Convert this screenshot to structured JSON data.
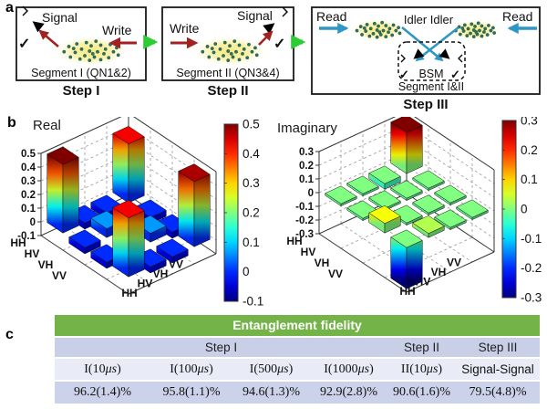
{
  "panels": {
    "a": "a",
    "b": "b",
    "c": "c"
  },
  "diagram": {
    "step1": {
      "signal": "Signal",
      "write": "Write",
      "segment": "Segment I (QN1&2)",
      "step": "Step I"
    },
    "step2": {
      "write": "Write",
      "signal": "Signal",
      "segment": "Segment II (QN3&4)",
      "step": "Step II"
    },
    "step3": {
      "read_left": "Read",
      "read_right": "Read",
      "idler": "Idler Idler",
      "bsm": "BSM",
      "segment": "Segment I&II",
      "step": "Step III"
    },
    "icons": [
      "detector-icon",
      "checkmark-icon",
      "atom-cloud",
      "arrow"
    ],
    "colors": {
      "write_arrow": "#a22121",
      "read_arrow": "#2f97c5",
      "step_arrow": "#2ecc33",
      "check": "#3ab54a",
      "atom_dot": "#2d7261",
      "cloud_glow": "#f8ee8a"
    }
  },
  "chart_data": [
    {
      "type": "bar3d",
      "title": "Real",
      "row_labels": [
        "HH",
        "HV",
        "VH",
        "VV"
      ],
      "col_labels": [
        "HH",
        "HV",
        "VH",
        "VV"
      ],
      "matrix": [
        [
          0.5,
          -0.045,
          -0.045,
          0.43
        ],
        [
          -0.045,
          0.065,
          -0.055,
          -0.045
        ],
        [
          -0.045,
          -0.055,
          0.065,
          -0.045
        ],
        [
          0.43,
          -0.045,
          -0.045,
          0.475
        ]
      ],
      "zlim": [
        -0.1,
        0.5
      ],
      "zticks": [
        "0.5",
        "0.4",
        "0.3",
        "0.2",
        "0.1",
        "0",
        "-0.1"
      ],
      "colorbar_ticks": [
        "0.5",
        "0.4",
        "0.3",
        "0.2",
        "0.1",
        "0",
        "-0.1"
      ],
      "colormap": "jet",
      "grid": true
    },
    {
      "type": "bar3d",
      "title": "Imaginary",
      "row_labels": [
        "HH",
        "HV",
        "VH",
        "VV"
      ],
      "col_labels": [
        "HH",
        "HV",
        "VH",
        "VV"
      ],
      "matrix": [
        [
          0.0,
          0.0,
          -0.04,
          0.3
        ],
        [
          0.0,
          0.0,
          0.0,
          0.0
        ],
        [
          0.07,
          0.0,
          0.0,
          0.0
        ],
        [
          -0.3,
          0.03,
          0.0,
          0.0
        ]
      ],
      "zlim": [
        -0.3,
        0.3
      ],
      "zticks": [
        "0.3",
        "0.2",
        "0.1",
        "0",
        "-0.1",
        "-0.2",
        "-0.3"
      ],
      "colorbar_ticks": [
        "0.3",
        "0.2",
        "0.1",
        "0",
        "-0.1",
        "-0.2",
        "-0.3"
      ],
      "colormap": "jet",
      "grid": true
    }
  ],
  "table": {
    "title": "Entanglement fidelity",
    "groups": [
      {
        "label": "Step I",
        "span": 4
      },
      {
        "label": "Step II",
        "span": 1
      },
      {
        "label": "Step III",
        "span": 1
      }
    ],
    "columns": [
      "I(10μs)",
      "I(100μs)",
      "I(500μs)",
      "I(1000μs)",
      "II(10μs)",
      "Signal-Signal"
    ],
    "values": [
      "96.2(1.4)%",
      "95.8(1.1)%",
      "94.6(1.3)%",
      "92.9(2.8)%",
      "90.6(1.6)%",
      "79.5(4.8)%"
    ],
    "colors": {
      "header_bg": "#74b347",
      "groups_bg": "#c8cfe7",
      "cols_bg": "#e9ebf6",
      "vals_bg": "#cbd2e9"
    }
  }
}
